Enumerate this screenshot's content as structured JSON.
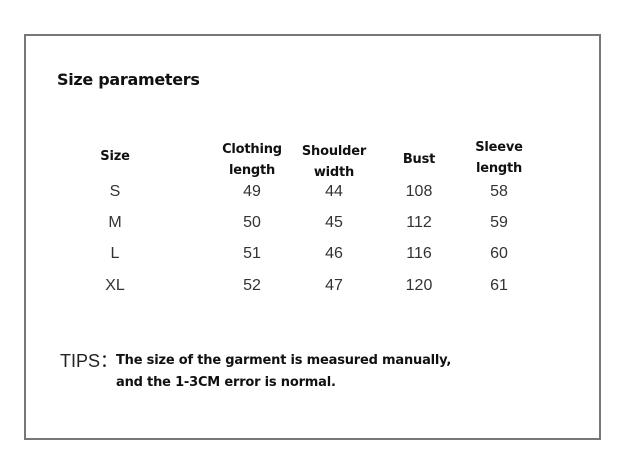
{
  "title": "Size parameters",
  "table": {
    "headers": [
      "Size",
      "Clothing length",
      "Shoulder width",
      "Bust",
      "Sleeve length"
    ],
    "header_lines": [
      [
        "Size"
      ],
      [
        "Clothing",
        "length"
      ],
      [
        "Shoulder",
        "width"
      ],
      [
        "Bust"
      ],
      [
        "Sleeve",
        "length"
      ]
    ],
    "rows": [
      [
        "S",
        "49",
        "44",
        "108",
        "58"
      ],
      [
        "M",
        "50",
        "45",
        "112",
        "59"
      ],
      [
        "L",
        "51",
        "46",
        "116",
        "60"
      ],
      [
        "XL",
        "52",
        "47",
        "120",
        "61"
      ]
    ]
  },
  "tips": {
    "label": "TIPS：",
    "line1": "The size of the garment is measured manually,",
    "line2": "and the 1-3CM error is normal."
  }
}
